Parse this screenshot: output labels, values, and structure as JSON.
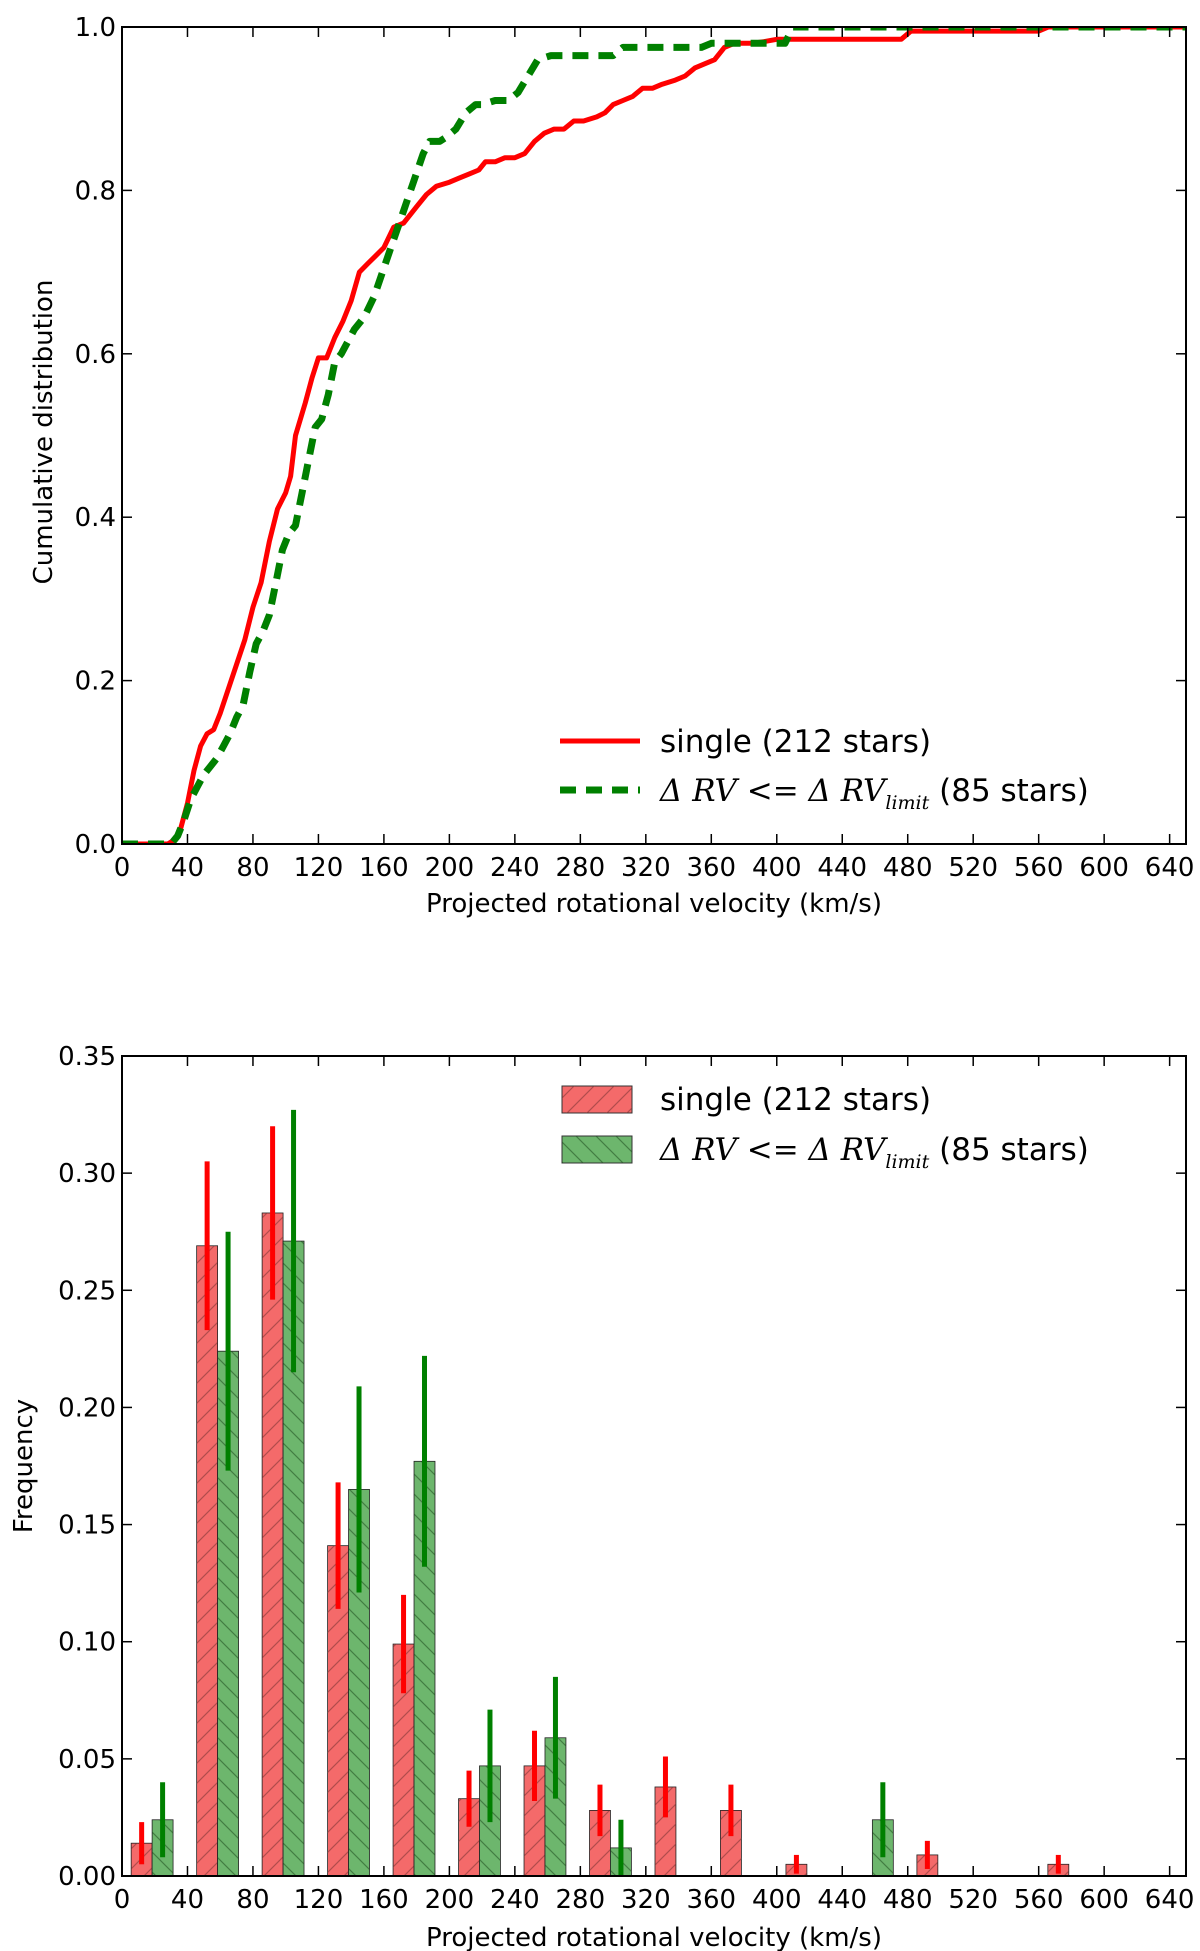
{
  "chart_data": [
    {
      "type": "line",
      "xlabel": "Projected rotational velocity (km/s)",
      "ylabel": "Cumulative distribution",
      "xlim": [
        0,
        650
      ],
      "ylim": [
        0,
        1.0
      ],
      "xticks": [
        0,
        40,
        80,
        120,
        160,
        200,
        240,
        280,
        320,
        360,
        400,
        440,
        480,
        520,
        560,
        600,
        640
      ],
      "yticks": [
        0.0,
        0.2,
        0.4,
        0.6,
        0.8,
        1.0
      ],
      "ytick_labels": [
        "0.0",
        "0.2",
        "0.4",
        "0.6",
        "0.8",
        "1.0"
      ],
      "grid": false,
      "legend_position": "lower-right",
      "series": [
        {
          "name": "single (212 stars)",
          "color": "#ff0000",
          "style": "solid",
          "points": [
            [
              0,
              0.0
            ],
            [
              28,
              0.0
            ],
            [
              32,
              0.005
            ],
            [
              36,
              0.02
            ],
            [
              40,
              0.05
            ],
            [
              44,
              0.09
            ],
            [
              48,
              0.12
            ],
            [
              52,
              0.135
            ],
            [
              56,
              0.14
            ],
            [
              60,
              0.16
            ],
            [
              65,
              0.19
            ],
            [
              70,
              0.22
            ],
            [
              75,
              0.25
            ],
            [
              80,
              0.29
            ],
            [
              85,
              0.32
            ],
            [
              90,
              0.37
            ],
            [
              95,
              0.41
            ],
            [
              100,
              0.43
            ],
            [
              103,
              0.45
            ],
            [
              106,
              0.5
            ],
            [
              112,
              0.54
            ],
            [
              116,
              0.57
            ],
            [
              120,
              0.595
            ],
            [
              125,
              0.595
            ],
            [
              130,
              0.62
            ],
            [
              135,
              0.64
            ],
            [
              140,
              0.665
            ],
            [
              145,
              0.7
            ],
            [
              150,
              0.71
            ],
            [
              155,
              0.72
            ],
            [
              160,
              0.73
            ],
            [
              166,
              0.755
            ],
            [
              172,
              0.76
            ],
            [
              180,
              0.78
            ],
            [
              186,
              0.795
            ],
            [
              192,
              0.805
            ],
            [
              200,
              0.81
            ],
            [
              206,
              0.815
            ],
            [
              212,
              0.82
            ],
            [
              218,
              0.825
            ],
            [
              222,
              0.835
            ],
            [
              228,
              0.835
            ],
            [
              234,
              0.84
            ],
            [
              240,
              0.84
            ],
            [
              246,
              0.845
            ],
            [
              252,
              0.86
            ],
            [
              258,
              0.87
            ],
            [
              264,
              0.875
            ],
            [
              270,
              0.875
            ],
            [
              276,
              0.885
            ],
            [
              282,
              0.885
            ],
            [
              290,
              0.89
            ],
            [
              295,
              0.895
            ],
            [
              300,
              0.905
            ],
            [
              306,
              0.91
            ],
            [
              312,
              0.915
            ],
            [
              318,
              0.925
            ],
            [
              324,
              0.925
            ],
            [
              330,
              0.93
            ],
            [
              338,
              0.935
            ],
            [
              344,
              0.94
            ],
            [
              350,
              0.95
            ],
            [
              356,
              0.955
            ],
            [
              362,
              0.96
            ],
            [
              368,
              0.975
            ],
            [
              374,
              0.98
            ],
            [
              385,
              0.98
            ],
            [
              392,
              0.982
            ],
            [
              400,
              0.985
            ],
            [
              410,
              0.985
            ],
            [
              420,
              0.985
            ],
            [
              440,
              0.985
            ],
            [
              476,
              0.985
            ],
            [
              482,
              0.995
            ],
            [
              520,
              0.995
            ],
            [
              560,
              0.995
            ],
            [
              566,
              1.0
            ],
            [
              650,
              1.0
            ]
          ]
        },
        {
          "name": "Δ RV <= Δ RV_limit (85 stars)",
          "color": "#008000",
          "style": "dashed",
          "points": [
            [
              0,
              0.0
            ],
            [
              30,
              0.0
            ],
            [
              34,
              0.01
            ],
            [
              38,
              0.03
            ],
            [
              42,
              0.055
            ],
            [
              46,
              0.07
            ],
            [
              50,
              0.085
            ],
            [
              54,
              0.095
            ],
            [
              58,
              0.105
            ],
            [
              62,
              0.12
            ],
            [
              66,
              0.135
            ],
            [
              70,
              0.155
            ],
            [
              74,
              0.17
            ],
            [
              78,
              0.21
            ],
            [
              82,
              0.245
            ],
            [
              86,
              0.26
            ],
            [
              90,
              0.28
            ],
            [
              94,
              0.32
            ],
            [
              98,
              0.36
            ],
            [
              102,
              0.38
            ],
            [
              106,
              0.39
            ],
            [
              110,
              0.43
            ],
            [
              114,
              0.47
            ],
            [
              118,
              0.51
            ],
            [
              122,
              0.52
            ],
            [
              126,
              0.55
            ],
            [
              130,
              0.59
            ],
            [
              134,
              0.6
            ],
            [
              138,
              0.615
            ],
            [
              142,
              0.63
            ],
            [
              148,
              0.645
            ],
            [
              154,
              0.67
            ],
            [
              160,
              0.705
            ],
            [
              166,
              0.74
            ],
            [
              172,
              0.775
            ],
            [
              178,
              0.81
            ],
            [
              184,
              0.845
            ],
            [
              188,
              0.86
            ],
            [
              194,
              0.86
            ],
            [
              198,
              0.865
            ],
            [
              204,
              0.875
            ],
            [
              210,
              0.895
            ],
            [
              216,
              0.905
            ],
            [
              220,
              0.905
            ],
            [
              228,
              0.91
            ],
            [
              236,
              0.91
            ],
            [
              242,
              0.92
            ],
            [
              248,
              0.94
            ],
            [
              254,
              0.96
            ],
            [
              262,
              0.965
            ],
            [
              300,
              0.965
            ],
            [
              306,
              0.975
            ],
            [
              354,
              0.975
            ],
            [
              360,
              0.98
            ],
            [
              405,
              0.98
            ],
            [
              410,
              1.0
            ],
            [
              650,
              1.0
            ]
          ]
        }
      ]
    },
    {
      "type": "bar",
      "xlabel": "Projected rotational velocity (km/s)",
      "ylabel": "Frequency",
      "xlim": [
        0,
        650
      ],
      "ylim": [
        0,
        0.35
      ],
      "xticks": [
        0,
        40,
        80,
        120,
        160,
        200,
        240,
        280,
        320,
        360,
        400,
        440,
        480,
        520,
        560,
        600,
        640
      ],
      "yticks": [
        0.0,
        0.05,
        0.1,
        0.15,
        0.2,
        0.25,
        0.3,
        0.35
      ],
      "ytick_labels": [
        "0.00",
        "0.05",
        "0.10",
        "0.15",
        "0.20",
        "0.25",
        "0.30",
        "0.35"
      ],
      "grid": false,
      "legend_position": "top-right",
      "bins": [
        0,
        40,
        80,
        120,
        160,
        200,
        240,
        280,
        320,
        360,
        400,
        440,
        480,
        520,
        560,
        600
      ],
      "series": [
        {
          "name": "single (212 stars)",
          "fill": "#f46a6a",
          "errcolor": "#ff0000",
          "values": [
            0.014,
            0.269,
            0.283,
            0.141,
            0.099,
            0.033,
            0.047,
            0.028,
            0.038,
            0.028,
            0.005,
            0.0,
            0.009,
            0.0,
            0.005,
            0.0
          ],
          "errors": [
            0.009,
            0.036,
            0.037,
            0.027,
            0.021,
            0.012,
            0.015,
            0.011,
            0.013,
            0.011,
            0.004,
            0.0,
            0.006,
            0.0,
            0.004,
            0.0
          ]
        },
        {
          "name": "Δ RV <= Δ RV_limit (85 stars)",
          "fill": "#6db66d",
          "errcolor": "#008000",
          "values": [
            0.024,
            0.224,
            0.271,
            0.165,
            0.177,
            0.047,
            0.059,
            0.012,
            0.0,
            0.0,
            0.0,
            0.024,
            0.0,
            0.0,
            0.0,
            0.0
          ],
          "errors": [
            0.016,
            0.051,
            0.056,
            0.044,
            0.045,
            0.024,
            0.026,
            0.012,
            0.0,
            0.0,
            0.0,
            0.016,
            0.0,
            0.0,
            0.0,
            0.0
          ]
        }
      ]
    }
  ]
}
